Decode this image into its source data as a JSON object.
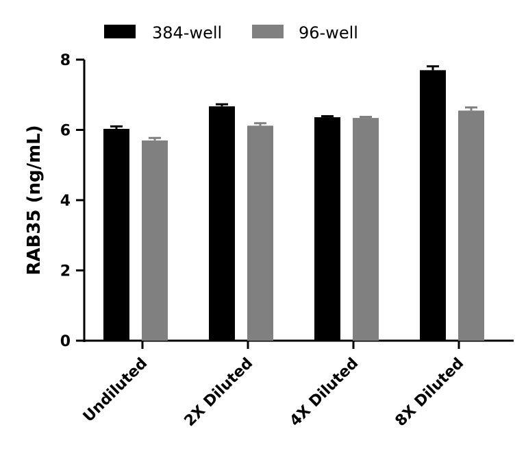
{
  "chart_data": {
    "type": "bar",
    "categories": [
      "Undiluted",
      "2X Diluted",
      "4X Diluted",
      "8X Diluted"
    ],
    "series": [
      {
        "name": "384-well",
        "color": "#000000",
        "values": [
          6.03,
          6.67,
          6.36,
          7.7
        ],
        "errors": [
          0.07,
          0.06,
          0.03,
          0.11
        ]
      },
      {
        "name": "96-well",
        "color": "#808080",
        "values": [
          5.7,
          6.12,
          6.34,
          6.55
        ],
        "errors": [
          0.07,
          0.07,
          0.03,
          0.09
        ]
      }
    ],
    "ylabel": "RAB35 (ng/mL)",
    "xlabel": "",
    "ylim": [
      0,
      8
    ],
    "yticks": [
      0,
      2,
      4,
      6,
      8
    ],
    "legend": "top",
    "grid": false
  }
}
